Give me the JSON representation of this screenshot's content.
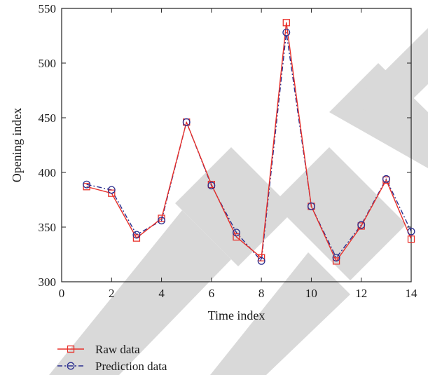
{
  "chart_data": {
    "type": "line",
    "xlabel": "Time index",
    "ylabel": "Opening index",
    "xlim": [
      0,
      14
    ],
    "ylim": [
      300,
      550
    ],
    "xticks": [
      0,
      2,
      4,
      6,
      8,
      10,
      12,
      14
    ],
    "yticks": [
      300,
      350,
      400,
      450,
      500,
      550
    ],
    "grid": false,
    "legend_position": "bottom-left",
    "x": [
      1,
      2,
      3,
      4,
      5,
      6,
      7,
      8,
      9,
      10,
      11,
      12,
      13,
      14
    ],
    "series": [
      {
        "name": "Raw data",
        "color": "#e8302a",
        "line_style": "solid",
        "marker": "square",
        "values": [
          387,
          381,
          340,
          358,
          446,
          389,
          341,
          322,
          537,
          369,
          319,
          351,
          393,
          339
        ]
      },
      {
        "name": "Prediction data",
        "color": "#2b2f8f",
        "line_style": "dash-dot",
        "marker": "circle",
        "values": [
          389,
          384,
          343,
          356,
          446,
          388,
          345,
          319,
          528,
          369,
          322,
          352,
          394,
          346
        ]
      }
    ]
  },
  "watermark": {
    "text": "RETRACTED",
    "color": "#d9d9d9"
  }
}
